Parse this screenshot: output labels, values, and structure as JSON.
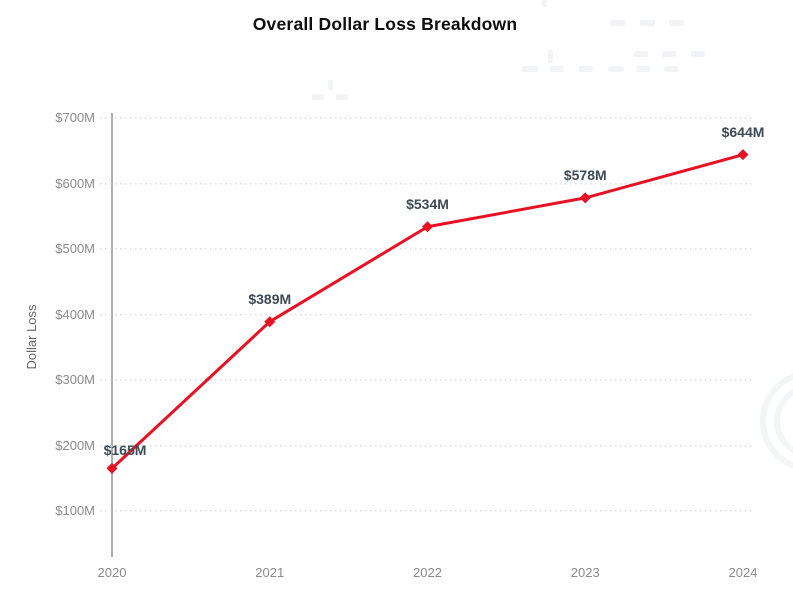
{
  "title": "Overall Dollar Loss Breakdown",
  "colors": {
    "background": "#ffffff",
    "title_text": "#0d0d0d",
    "line": "#e81123",
    "marker": "#e81123",
    "data_label": "#3d4b55",
    "tick_label": "#8b8b8b",
    "axis_title": "#666666",
    "axis_line": "#aeaeae",
    "gridline": "#dedede"
  },
  "chart_data": {
    "type": "line",
    "title": "Overall Dollar Loss Breakdown",
    "xlabel": "",
    "ylabel": "Dollar Loss",
    "categories": [
      "2020",
      "2021",
      "2022",
      "2023",
      "2024"
    ],
    "series": [
      {
        "name": "Dollar Loss",
        "values": [
          165,
          389,
          534,
          578,
          644
        ]
      }
    ],
    "data_labels": [
      "$165M",
      "$389M",
      "$534M",
      "$578M",
      "$644M"
    ],
    "ylim": [
      100,
      700
    ],
    "ytick_step": 100,
    "ytick_labels": [
      "$100M",
      "$200M",
      "$300M",
      "$400M",
      "$500M",
      "$600M",
      "$700M"
    ],
    "grid": "dotted-horizontal",
    "legend": "none",
    "marker": "diamond",
    "line_width": 3
  }
}
